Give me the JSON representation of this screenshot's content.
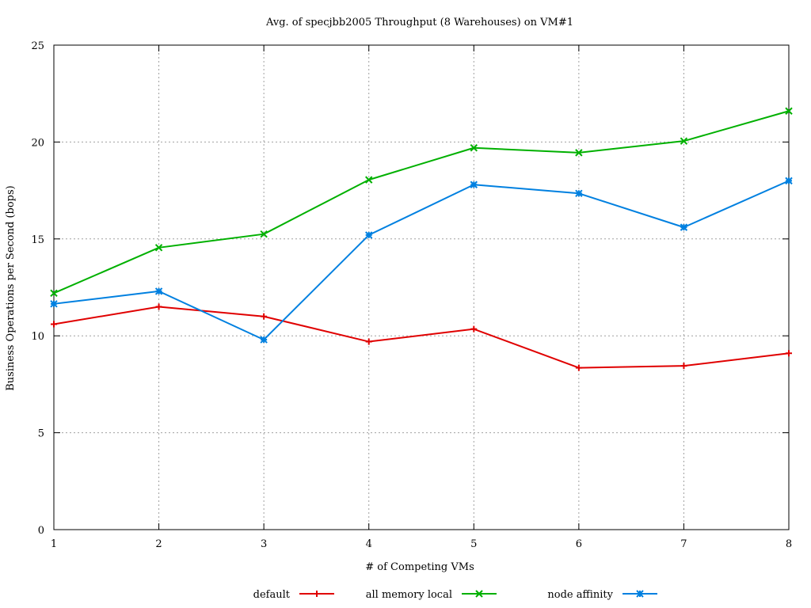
{
  "chart_data": {
    "type": "line",
    "title": "Avg. of specjbb2005 Throughput (8 Warehouses) on VM#1",
    "xlabel": "# of Competing VMs",
    "ylabel": "Business Operations per Second (bops)",
    "x": [
      1,
      2,
      3,
      4,
      5,
      6,
      7,
      8
    ],
    "xlim": [
      1,
      8
    ],
    "ylim": [
      0,
      25
    ],
    "yticks": [
      0,
      5,
      10,
      15,
      20,
      25
    ],
    "xticks": [
      1,
      2,
      3,
      4,
      5,
      6,
      7,
      8
    ],
    "grid": true,
    "legend_position": "bottom",
    "series": [
      {
        "name": "default",
        "color": "#e00000",
        "marker": "plus",
        "values": [
          10.6,
          11.5,
          11.0,
          9.7,
          10.35,
          8.35,
          8.45,
          9.1
        ]
      },
      {
        "name": "all memory local",
        "color": "#00b000",
        "marker": "cross",
        "values": [
          12.2,
          14.55,
          15.25,
          18.05,
          19.7,
          19.45,
          20.05,
          21.6
        ]
      },
      {
        "name": "node affinity",
        "color": "#0080e0",
        "marker": "star",
        "values": [
          11.65,
          12.3,
          9.8,
          15.2,
          17.8,
          17.35,
          15.6,
          18.0
        ]
      }
    ]
  }
}
